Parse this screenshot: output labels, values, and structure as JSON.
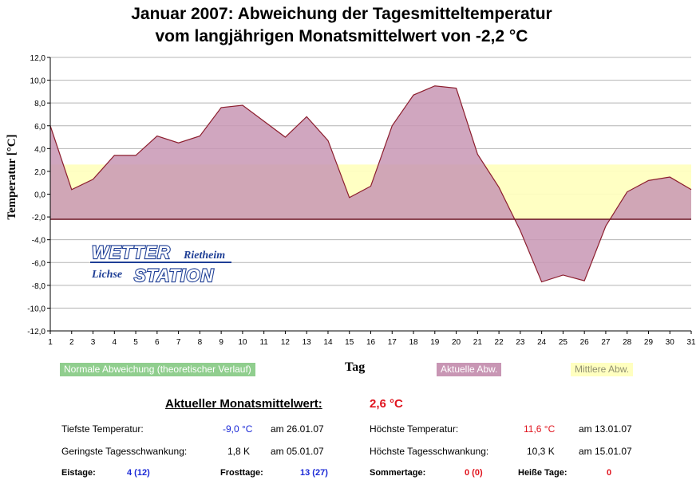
{
  "chart_data": {
    "type": "area",
    "title_line1": "Januar 2007: Abweichung der Tagesmitteltemperatur",
    "title_line2": "vom langjährigen Monatsmittelwert von -2,2 °C",
    "xlabel": "Tag",
    "ylabel": "Temperatur [°C]",
    "ylim": [
      -12,
      12
    ],
    "y_ticks": [
      "-12,0",
      "-10,0",
      "-8,0",
      "-6,0",
      "-4,0",
      "-2,0",
      "0,0",
      "2,0",
      "4,0",
      "6,0",
      "8,0",
      "10,0",
      "12,0"
    ],
    "x": [
      1,
      2,
      3,
      4,
      5,
      6,
      7,
      8,
      9,
      10,
      11,
      12,
      13,
      14,
      15,
      16,
      17,
      18,
      19,
      20,
      21,
      22,
      23,
      24,
      25,
      26,
      27,
      28,
      29,
      30,
      31
    ],
    "baseline": -2.2,
    "mean_deviation_band": [
      -2.2,
      2.6
    ],
    "series": [
      {
        "name": "Aktuelle Abw.",
        "color": "#c896b4",
        "values": [
          6.0,
          0.4,
          1.3,
          3.4,
          3.4,
          5.1,
          4.5,
          5.1,
          7.6,
          7.8,
          6.4,
          5.0,
          6.8,
          4.7,
          -0.3,
          0.7,
          6.0,
          8.7,
          9.5,
          9.3,
          3.5,
          0.6,
          -3.2,
          -7.7,
          -7.1,
          -7.6,
          -2.8,
          0.2,
          1.2,
          1.5,
          0.4
        ]
      }
    ],
    "legend": [
      {
        "label": "Normale Abweichung (theoretischer Verlauf)",
        "color": "#90ce8e"
      },
      {
        "label": "Aktuelle Abw.",
        "color": "#c896b4"
      },
      {
        "label": "Mittlere Abw.",
        "color": "#ffffc0"
      }
    ]
  },
  "logo": {
    "wetter": "WETTER",
    "rietheim": "Rietheim",
    "lichse": "Lichse",
    "station": "STATION"
  },
  "stats": {
    "monthly_label": "Aktueller Monatsmittelwert:",
    "monthly_value": "2,6 °C",
    "min_temp_label": "Tiefste Temperatur:",
    "min_temp_value": "-9,0 °C",
    "min_temp_date": "am 26.01.07",
    "max_temp_label": "Höchste Temperatur:",
    "max_temp_value": "11,6 °C",
    "max_temp_date": "am 13.01.07",
    "min_range_label": "Geringste Tagesschwankung:",
    "min_range_value": "1,8 K",
    "min_range_date": "am 05.01.07",
    "max_range_label": "Höchste Tagesschwankung:",
    "max_range_value": "10,3 K",
    "max_range_date": "am 15.01.07",
    "eistage_label": "Eistage:",
    "eistage_value": "4 (12)",
    "frosttage_label": "Frosttage:",
    "frosttage_value": "13 (27)",
    "sommertage_label": "Sommertage:",
    "sommertage_value": "0 (0)",
    "heisse_label": "Heiße Tage:",
    "heisse_value": "0"
  }
}
